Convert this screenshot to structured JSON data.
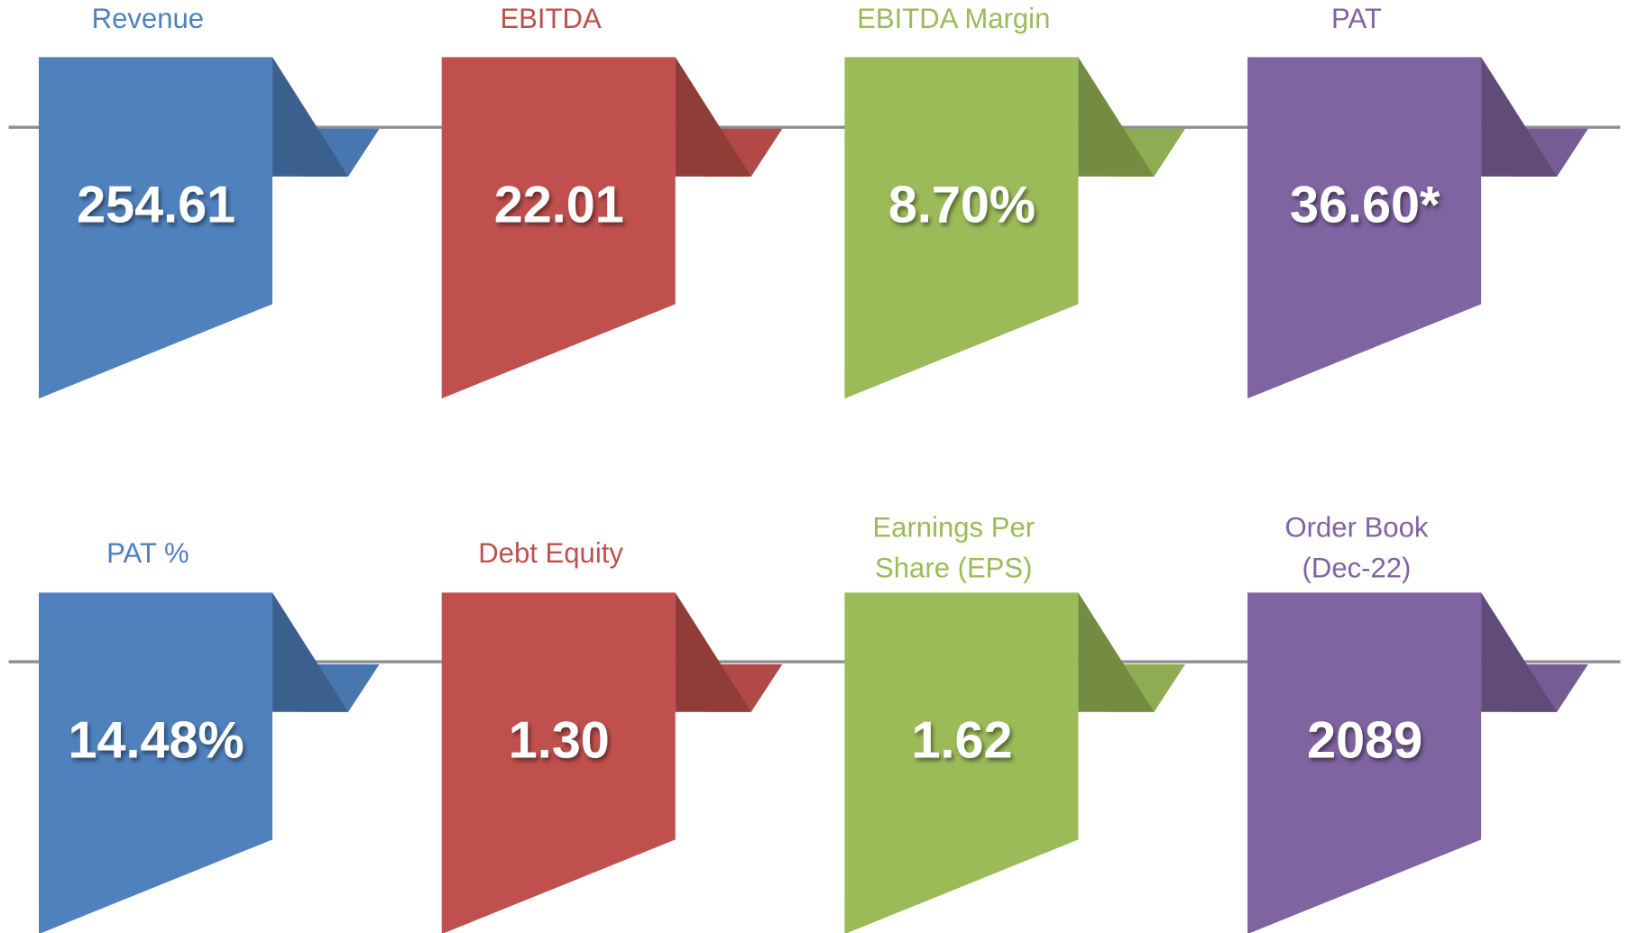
{
  "cards": [
    {
      "label": [
        "Revenue"
      ],
      "value": "254.61",
      "color": "#4f81bd"
    },
    {
      "label": [
        "EBITDA"
      ],
      "value": "22.01",
      "color": "#c0504d"
    },
    {
      "label": [
        "EBITDA Margin"
      ],
      "value": "8.70%",
      "color": "#9bbb59"
    },
    {
      "label": [
        "PAT"
      ],
      "value": "36.60*",
      "color": "#8064a2"
    },
    {
      "label": [
        "PAT %"
      ],
      "value": "14.48%",
      "color": "#4f81bd"
    },
    {
      "label": [
        "Debt Equity"
      ],
      "value": "1.30",
      "color": "#c0504d"
    },
    {
      "label": [
        "Earnings Per",
        "Share (EPS)"
      ],
      "value": "1.62",
      "color": "#9bbb59"
    },
    {
      "label": [
        "Order Book",
        "(Dec-22)"
      ],
      "value": "2089",
      "color": "#8064a2"
    }
  ]
}
